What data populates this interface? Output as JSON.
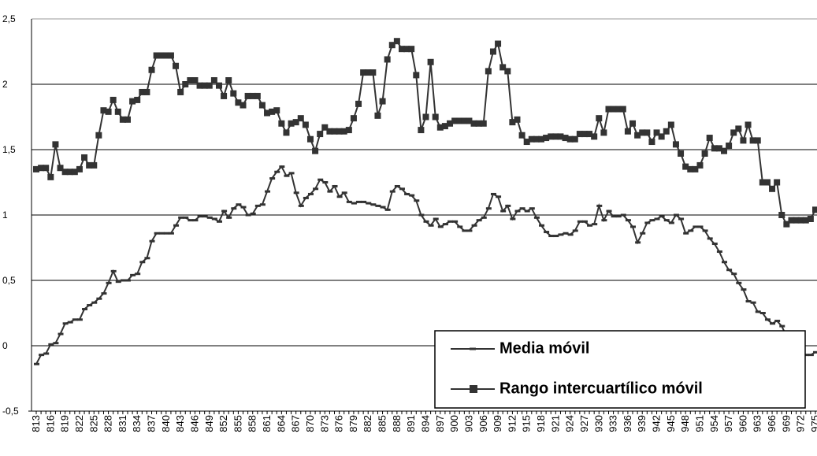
{
  "chart_data": {
    "type": "line",
    "categories": [
      "813",
      null,
      null,
      "816",
      null,
      null,
      "819",
      null,
      null,
      "822",
      null,
      null,
      "825",
      null,
      null,
      "828",
      null,
      null,
      "831",
      null,
      null,
      "834",
      null,
      null,
      "837",
      null,
      null,
      "840",
      null,
      null,
      "843",
      null,
      null,
      "846",
      null,
      null,
      "849",
      null,
      null,
      "852",
      null,
      null,
      "855",
      null,
      null,
      "858",
      null,
      null,
      "861",
      null,
      null,
      "864",
      null,
      null,
      "867",
      null,
      null,
      "870",
      null,
      null,
      "873",
      null,
      null,
      "876",
      null,
      null,
      "879",
      null,
      null,
      "882",
      null,
      null,
      "885",
      null,
      null,
      "888",
      null,
      null,
      "891",
      null,
      null,
      "894",
      null,
      null,
      "897",
      null,
      null,
      "900",
      null,
      null,
      "903",
      null,
      null,
      "906",
      null,
      null,
      "909",
      null,
      null,
      "912",
      null,
      null,
      "915",
      null,
      null,
      "918",
      null,
      null,
      "921",
      null,
      null,
      "924",
      null,
      null,
      "927",
      null,
      null,
      "930",
      null,
      null,
      "933",
      null,
      null,
      "936",
      null,
      null,
      "939",
      null,
      null,
      "942",
      null,
      null,
      "945",
      null,
      null,
      "948",
      null,
      null,
      "951",
      null,
      null,
      "954",
      null,
      null,
      "957",
      null,
      null,
      "960",
      null,
      null,
      "963",
      null,
      null,
      "966",
      null,
      null,
      "969",
      null,
      null,
      "972",
      null,
      null,
      "975"
    ],
    "series": [
      {
        "name": "Media móvil",
        "color": "#333333",
        "marker": "dash",
        "values": [
          -0.14,
          -0.07,
          -0.06,
          0.01,
          0.02,
          0.09,
          0.17,
          0.18,
          0.2,
          0.2,
          0.28,
          0.31,
          0.33,
          0.36,
          0.4,
          0.48,
          0.57,
          0.49,
          0.5,
          0.5,
          0.54,
          0.55,
          0.64,
          0.67,
          0.8,
          0.86,
          0.86,
          0.86,
          0.86,
          0.92,
          0.98,
          0.98,
          0.96,
          0.96,
          0.99,
          0.99,
          0.98,
          0.97,
          0.95,
          1.03,
          0.98,
          1.05,
          1.08,
          1.06,
          1.0,
          1.01,
          1.07,
          1.08,
          1.18,
          1.28,
          1.33,
          1.37,
          1.3,
          1.32,
          1.17,
          1.07,
          1.13,
          1.16,
          1.2,
          1.27,
          1.25,
          1.18,
          1.22,
          1.14,
          1.17,
          1.1,
          1.09,
          1.1,
          1.1,
          1.09,
          1.08,
          1.07,
          1.06,
          1.04,
          1.18,
          1.22,
          1.2,
          1.16,
          1.15,
          1.11,
          1.0,
          0.95,
          0.92,
          0.97,
          0.91,
          0.93,
          0.95,
          0.95,
          0.91,
          0.88,
          0.88,
          0.92,
          0.96,
          0.98,
          1.05,
          1.16,
          1.14,
          1.03,
          1.07,
          0.97,
          1.03,
          1.05,
          1.03,
          1.05,
          0.98,
          0.92,
          0.87,
          0.84,
          0.84,
          0.85,
          0.86,
          0.85,
          0.88,
          0.95,
          0.95,
          0.92,
          0.93,
          1.07,
          0.96,
          1.03,
          0.99,
          0.99,
          1.0,
          0.96,
          0.91,
          0.79,
          0.86,
          0.94,
          0.96,
          0.97,
          0.99,
          0.96,
          0.94,
          1.0,
          0.97,
          0.86,
          0.88,
          0.91,
          0.91,
          0.88,
          0.82,
          0.78,
          0.72,
          0.64,
          0.58,
          0.55,
          0.48,
          0.43,
          0.34,
          0.33,
          0.26,
          0.25,
          0.2,
          0.17,
          0.19,
          0.15,
          0.07,
          0.01,
          -0.02,
          -0.04,
          -0.07,
          -0.07,
          -0.05
        ]
      },
      {
        "name": "Rango intercuartílico móvil",
        "color": "#333333",
        "marker": "square",
        "values": [
          1.35,
          1.36,
          1.36,
          1.29,
          1.54,
          1.36,
          1.33,
          1.33,
          1.33,
          1.35,
          1.44,
          1.38,
          1.38,
          1.61,
          1.8,
          1.79,
          1.88,
          1.79,
          1.73,
          1.73,
          1.87,
          1.88,
          1.94,
          1.94,
          2.11,
          2.22,
          2.22,
          2.22,
          2.22,
          2.14,
          1.94,
          2.0,
          2.03,
          2.03,
          1.99,
          1.99,
          1.99,
          2.03,
          1.99,
          1.91,
          2.03,
          1.93,
          1.86,
          1.84,
          1.91,
          1.91,
          1.91,
          1.84,
          1.78,
          1.79,
          1.8,
          1.7,
          1.63,
          1.7,
          1.71,
          1.74,
          1.69,
          1.58,
          1.49,
          1.62,
          1.67,
          1.64,
          1.64,
          1.64,
          1.64,
          1.65,
          1.74,
          1.85,
          2.09,
          2.09,
          2.09,
          1.76,
          1.87,
          2.19,
          2.3,
          2.33,
          2.27,
          2.27,
          2.27,
          2.07,
          1.65,
          1.75,
          2.17,
          1.75,
          1.67,
          1.68,
          1.7,
          1.72,
          1.72,
          1.72,
          1.72,
          1.7,
          1.7,
          1.7,
          2.1,
          2.25,
          2.31,
          2.13,
          2.1,
          1.71,
          1.73,
          1.61,
          1.56,
          1.58,
          1.58,
          1.58,
          1.59,
          1.6,
          1.6,
          1.6,
          1.59,
          1.58,
          1.58,
          1.62,
          1.62,
          1.62,
          1.6,
          1.74,
          1.63,
          1.81,
          1.81,
          1.81,
          1.81,
          1.64,
          1.7,
          1.61,
          1.63,
          1.63,
          1.56,
          1.63,
          1.6,
          1.64,
          1.69,
          1.54,
          1.47,
          1.37,
          1.35,
          1.35,
          1.38,
          1.47,
          1.59,
          1.51,
          1.51,
          1.49,
          1.53,
          1.63,
          1.66,
          1.57,
          1.69,
          1.57,
          1.57,
          1.25,
          1.25,
          1.2,
          1.25,
          1.0,
          0.93,
          0.96,
          0.96,
          0.96,
          0.96,
          0.97,
          1.04
        ]
      }
    ],
    "ylim": [
      -0.5,
      2.5
    ],
    "yticks": [
      {
        "value": -0.5,
        "label": "-0,5"
      },
      0,
      {
        "value": 0.5,
        "label": "0,5"
      },
      1,
      {
        "value": 1.5,
        "label": "1,5"
      },
      2,
      {
        "value": 2.5,
        "label": "2,5"
      }
    ],
    "grid": true,
    "legend": "lower right"
  }
}
